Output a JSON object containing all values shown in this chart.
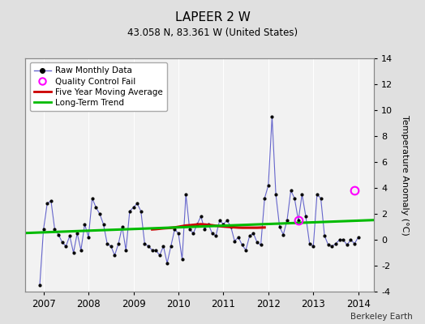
{
  "title": "LAPEER 2 W",
  "subtitle": "43.058 N, 83.361 W (United States)",
  "ylabel_right": "Temperature Anomaly (°C)",
  "attribution": "Berkeley Earth",
  "ylim": [
    -4,
    14
  ],
  "yticks": [
    -4,
    -2,
    0,
    2,
    4,
    6,
    8,
    10,
    12,
    14
  ],
  "xlim_start": 2006.6,
  "xlim_end": 2014.35,
  "xticks": [
    2007,
    2008,
    2009,
    2010,
    2011,
    2012,
    2013,
    2014
  ],
  "bg_color": "#e0e0e0",
  "plot_bg_color": "#f2f2f2",
  "raw_color": "#6666cc",
  "raw_marker_color": "#000000",
  "moving_avg_color": "#cc0000",
  "trend_color": "#00bb00",
  "qc_fail_color": "#ff00ff",
  "legend_labels": [
    "Raw Monthly Data",
    "Quality Control Fail",
    "Five Year Moving Average",
    "Long-Term Trend"
  ],
  "raw_data": [
    [
      2006.917,
      -3.5
    ],
    [
      2007.0,
      0.8
    ],
    [
      2007.083,
      2.8
    ],
    [
      2007.167,
      3.0
    ],
    [
      2007.25,
      0.8
    ],
    [
      2007.333,
      0.4
    ],
    [
      2007.417,
      -0.2
    ],
    [
      2007.5,
      -0.5
    ],
    [
      2007.583,
      0.3
    ],
    [
      2007.667,
      -1.0
    ],
    [
      2007.75,
      0.5
    ],
    [
      2007.833,
      -0.8
    ],
    [
      2007.917,
      1.2
    ],
    [
      2008.0,
      0.2
    ],
    [
      2008.083,
      3.2
    ],
    [
      2008.167,
      2.5
    ],
    [
      2008.25,
      2.0
    ],
    [
      2008.333,
      1.2
    ],
    [
      2008.417,
      -0.3
    ],
    [
      2008.5,
      -0.5
    ],
    [
      2008.583,
      -1.2
    ],
    [
      2008.667,
      -0.3
    ],
    [
      2008.75,
      1.0
    ],
    [
      2008.833,
      -0.8
    ],
    [
      2008.917,
      2.2
    ],
    [
      2009.0,
      2.5
    ],
    [
      2009.083,
      2.8
    ],
    [
      2009.167,
      2.2
    ],
    [
      2009.25,
      -0.3
    ],
    [
      2009.333,
      -0.5
    ],
    [
      2009.417,
      -0.8
    ],
    [
      2009.5,
      -0.8
    ],
    [
      2009.583,
      -1.2
    ],
    [
      2009.667,
      -0.5
    ],
    [
      2009.75,
      -1.8
    ],
    [
      2009.833,
      -0.5
    ],
    [
      2009.917,
      0.8
    ],
    [
      2010.0,
      0.5
    ],
    [
      2010.083,
      -1.5
    ],
    [
      2010.167,
      3.5
    ],
    [
      2010.25,
      0.8
    ],
    [
      2010.333,
      0.5
    ],
    [
      2010.417,
      1.2
    ],
    [
      2010.5,
      1.8
    ],
    [
      2010.583,
      0.8
    ],
    [
      2010.667,
      1.2
    ],
    [
      2010.75,
      0.5
    ],
    [
      2010.833,
      0.3
    ],
    [
      2010.917,
      1.5
    ],
    [
      2011.0,
      1.2
    ],
    [
      2011.083,
      1.5
    ],
    [
      2011.167,
      1.0
    ],
    [
      2011.25,
      -0.1
    ],
    [
      2011.333,
      0.2
    ],
    [
      2011.417,
      -0.4
    ],
    [
      2011.5,
      -0.8
    ],
    [
      2011.583,
      0.3
    ],
    [
      2011.667,
      0.5
    ],
    [
      2011.75,
      -0.2
    ],
    [
      2011.833,
      -0.4
    ],
    [
      2011.917,
      3.2
    ],
    [
      2012.0,
      4.2
    ],
    [
      2012.083,
      9.5
    ],
    [
      2012.167,
      3.5
    ],
    [
      2012.25,
      1.0
    ],
    [
      2012.333,
      0.4
    ],
    [
      2012.417,
      1.5
    ],
    [
      2012.5,
      3.8
    ],
    [
      2012.583,
      3.2
    ],
    [
      2012.667,
      1.5
    ],
    [
      2012.75,
      3.5
    ],
    [
      2012.833,
      1.8
    ],
    [
      2012.917,
      -0.3
    ],
    [
      2013.0,
      -0.5
    ],
    [
      2013.083,
      3.5
    ],
    [
      2013.167,
      3.2
    ],
    [
      2013.25,
      0.3
    ],
    [
      2013.333,
      -0.4
    ],
    [
      2013.417,
      -0.5
    ],
    [
      2013.5,
      -0.3
    ],
    [
      2013.583,
      0.0
    ],
    [
      2013.667,
      0.0
    ],
    [
      2013.75,
      -0.4
    ],
    [
      2013.833,
      0.0
    ],
    [
      2013.917,
      -0.3
    ],
    [
      2014.0,
      0.2
    ]
  ],
  "moving_avg_data": [
    [
      2009.417,
      0.8
    ],
    [
      2009.5,
      0.82
    ],
    [
      2009.583,
      0.85
    ],
    [
      2009.667,
      0.88
    ],
    [
      2009.75,
      0.9
    ],
    [
      2009.833,
      0.92
    ],
    [
      2009.917,
      0.95
    ],
    [
      2010.0,
      1.0
    ],
    [
      2010.083,
      1.05
    ],
    [
      2010.167,
      1.1
    ],
    [
      2010.25,
      1.12
    ],
    [
      2010.333,
      1.15
    ],
    [
      2010.417,
      1.18
    ],
    [
      2010.5,
      1.2
    ],
    [
      2010.583,
      1.18
    ],
    [
      2010.667,
      1.15
    ],
    [
      2010.75,
      1.12
    ],
    [
      2010.833,
      1.08
    ],
    [
      2010.917,
      1.05
    ],
    [
      2011.0,
      1.02
    ],
    [
      2011.083,
      1.0
    ],
    [
      2011.167,
      0.98
    ],
    [
      2011.25,
      0.96
    ],
    [
      2011.333,
      0.94
    ],
    [
      2011.417,
      0.93
    ],
    [
      2011.5,
      0.93
    ],
    [
      2011.583,
      0.93
    ],
    [
      2011.667,
      0.93
    ],
    [
      2011.75,
      0.93
    ],
    [
      2011.833,
      0.94
    ],
    [
      2011.917,
      0.95
    ]
  ],
  "trend_data": [
    [
      2006.6,
      0.52
    ],
    [
      2014.35,
      1.52
    ]
  ],
  "qc_fail_data": [
    [
      2012.667,
      1.5
    ],
    [
      2013.917,
      3.8
    ]
  ]
}
